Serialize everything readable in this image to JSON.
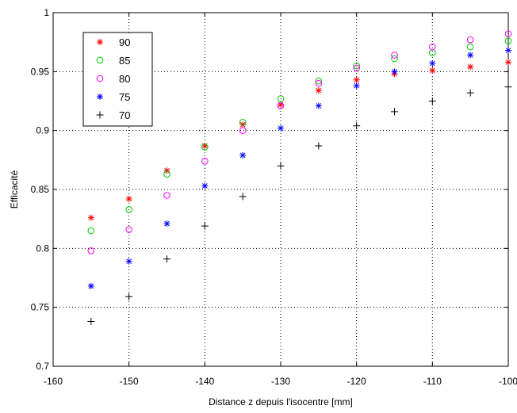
{
  "chart_data": {
    "type": "scatter",
    "title": "",
    "xlabel": "Distance z depuis l'isocentre [mm]",
    "ylabel": "Efficacité",
    "xlim": [
      -160,
      -100
    ],
    "ylim": [
      0.7,
      1.0
    ],
    "x_ticks": [
      -160,
      -150,
      -140,
      -130,
      -120,
      -110,
      -100
    ],
    "x_tick_labels": [
      "-160",
      "-150",
      "-140",
      "-130",
      "-120",
      "-110",
      "-100"
    ],
    "y_ticks": [
      0.7,
      0.75,
      0.8,
      0.85,
      0.9,
      0.95,
      1.0
    ],
    "y_tick_labels": [
      "0.7",
      "0.75",
      "0.8",
      "0.85",
      "0.9",
      "0.95",
      "1"
    ],
    "grid": true,
    "legend_position": "top-left",
    "x": [
      -155,
      -150,
      -145,
      -140,
      -135,
      -130,
      -125,
      -120,
      -115,
      -110,
      -105,
      -100
    ],
    "series": [
      {
        "name": "90",
        "color": "#ff0000",
        "marker": "asterisk",
        "values": [
          0.826,
          0.842,
          0.866,
          0.887,
          0.905,
          0.922,
          0.934,
          0.943,
          0.948,
          0.951,
          0.954,
          0.958
        ]
      },
      {
        "name": "85",
        "color": "#00cc00",
        "marker": "circle",
        "values": [
          0.815,
          0.833,
          0.863,
          0.886,
          0.907,
          0.927,
          0.942,
          0.955,
          0.961,
          0.966,
          0.971,
          0.976
        ]
      },
      {
        "name": "80",
        "color": "#ff00ff",
        "marker": "circle",
        "values": [
          0.798,
          0.816,
          0.845,
          0.874,
          0.9,
          0.921,
          0.94,
          0.953,
          0.964,
          0.971,
          0.977,
          0.982
        ]
      },
      {
        "name": "75",
        "color": "#0000ff",
        "marker": "asterisk",
        "values": [
          0.768,
          0.789,
          0.821,
          0.853,
          0.879,
          0.902,
          0.921,
          0.938,
          0.95,
          0.957,
          0.964,
          0.968
        ]
      },
      {
        "name": "70",
        "color": "#000000",
        "marker": "plus",
        "values": [
          0.738,
          0.759,
          0.791,
          0.819,
          0.844,
          0.87,
          0.887,
          0.904,
          0.916,
          0.925,
          0.932,
          0.937
        ]
      }
    ]
  }
}
